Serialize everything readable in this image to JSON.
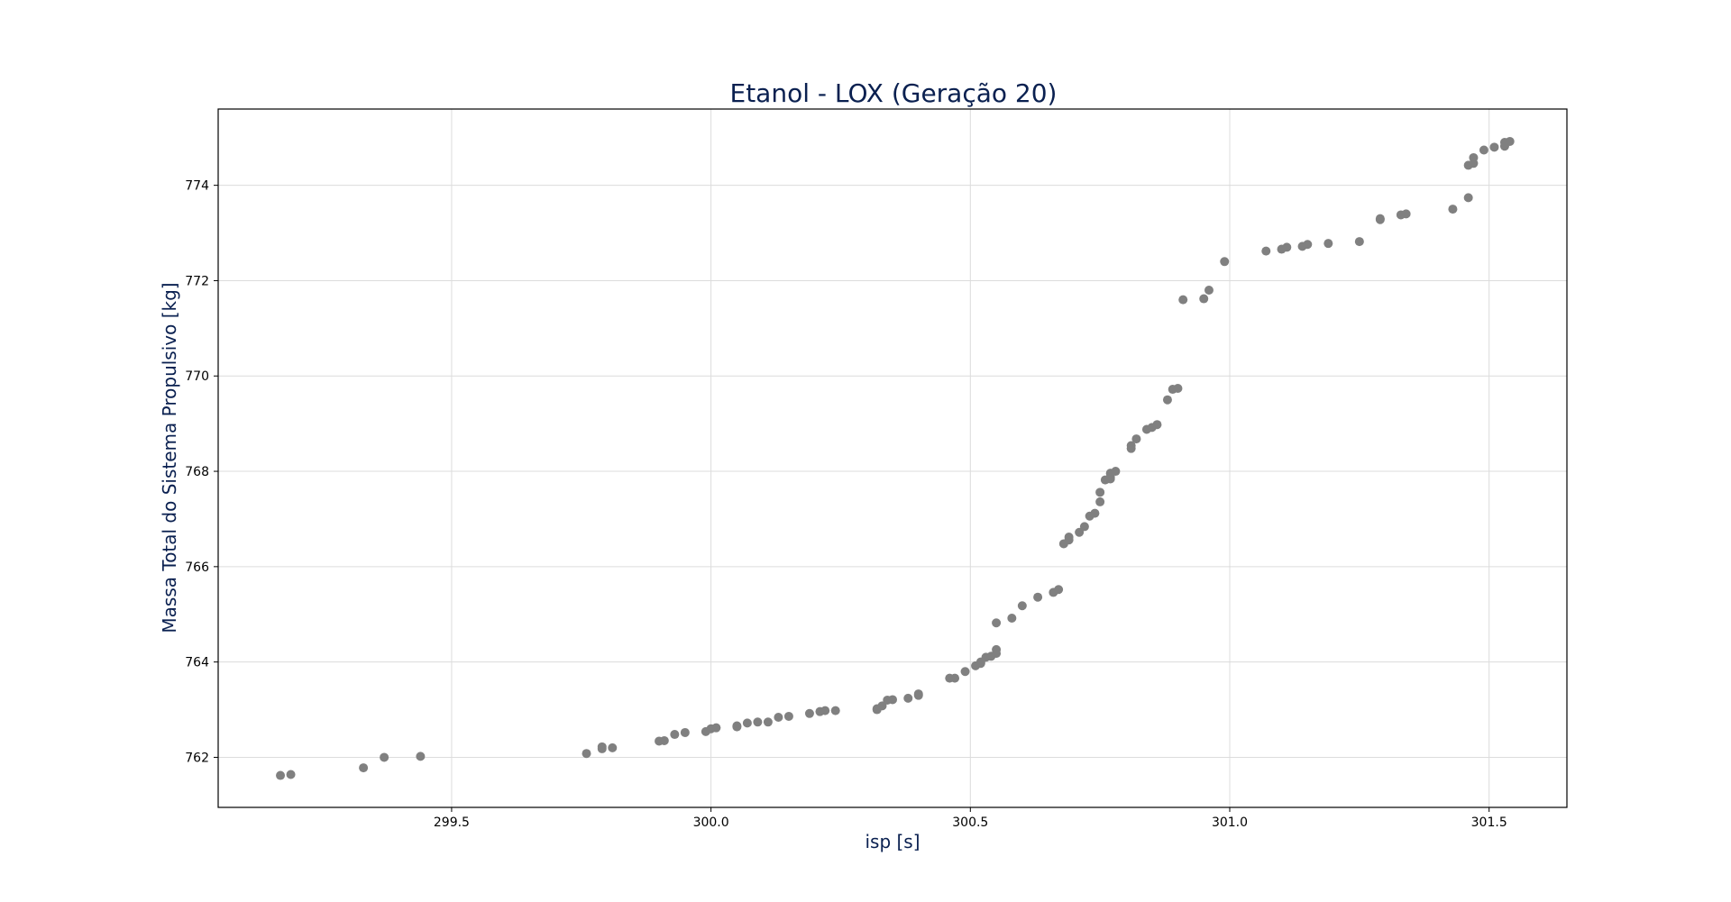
{
  "chart_data": {
    "type": "scatter",
    "title": "Etanol - LOX (Geração 20)",
    "xlabel": "isp [s]",
    "ylabel": "Massa Total do Sistema Propulsivo [kg]",
    "xlim": [
      299.05,
      301.65
    ],
    "ylim": [
      760.95,
      775.6
    ],
    "xticks": [
      299.5,
      300.0,
      300.5,
      301.0,
      301.5
    ],
    "xtick_labels": [
      "299.5",
      "300.0",
      "300.5",
      "301.0",
      "301.5"
    ],
    "yticks": [
      762,
      764,
      766,
      768,
      770,
      772,
      774
    ],
    "ytick_labels": [
      "762",
      "764",
      "766",
      "768",
      "770",
      "772",
      "774"
    ],
    "grid": true,
    "colors": {
      "points": "#808080",
      "title": "#0a2050",
      "grid": "#dcdcdc",
      "axes": "#000000"
    },
    "series": [
      {
        "points": [
          [
            299.17,
            761.62
          ],
          [
            299.19,
            761.64
          ],
          [
            299.33,
            761.78
          ],
          [
            299.37,
            762.0
          ],
          [
            299.44,
            762.02
          ],
          [
            299.76,
            762.08
          ],
          [
            299.79,
            762.18
          ],
          [
            299.79,
            762.22
          ],
          [
            299.81,
            762.2
          ],
          [
            299.9,
            762.34
          ],
          [
            299.91,
            762.35
          ],
          [
            299.93,
            762.48
          ],
          [
            299.95,
            762.52
          ],
          [
            299.99,
            762.54
          ],
          [
            300.0,
            762.6
          ],
          [
            300.01,
            762.62
          ],
          [
            300.05,
            762.64
          ],
          [
            300.05,
            762.66
          ],
          [
            300.07,
            762.72
          ],
          [
            300.09,
            762.74
          ],
          [
            300.11,
            762.74
          ],
          [
            300.13,
            762.84
          ],
          [
            300.15,
            762.86
          ],
          [
            300.19,
            762.92
          ],
          [
            300.21,
            762.96
          ],
          [
            300.22,
            762.98
          ],
          [
            300.24,
            762.98
          ],
          [
            300.32,
            763.0
          ],
          [
            300.32,
            763.02
          ],
          [
            300.33,
            763.08
          ],
          [
            300.34,
            763.2
          ],
          [
            300.35,
            763.21
          ],
          [
            300.38,
            763.24
          ],
          [
            300.4,
            763.3
          ],
          [
            300.4,
            763.33
          ],
          [
            300.46,
            763.66
          ],
          [
            300.47,
            763.66
          ],
          [
            300.49,
            763.8
          ],
          [
            300.51,
            763.92
          ],
          [
            300.52,
            763.97
          ],
          [
            300.52,
            764.0
          ],
          [
            300.53,
            764.1
          ],
          [
            300.54,
            764.12
          ],
          [
            300.55,
            764.18
          ],
          [
            300.55,
            764.26
          ],
          [
            300.55,
            764.82
          ],
          [
            300.58,
            764.92
          ],
          [
            300.6,
            765.18
          ],
          [
            300.63,
            765.36
          ],
          [
            300.66,
            765.46
          ],
          [
            300.67,
            765.52
          ],
          [
            300.68,
            766.48
          ],
          [
            300.69,
            766.56
          ],
          [
            300.69,
            766.62
          ],
          [
            300.71,
            766.72
          ],
          [
            300.72,
            766.84
          ],
          [
            300.73,
            767.06
          ],
          [
            300.74,
            767.12
          ],
          [
            300.75,
            767.36
          ],
          [
            300.75,
            767.56
          ],
          [
            300.76,
            767.82
          ],
          [
            300.77,
            767.84
          ],
          [
            300.77,
            767.88
          ],
          [
            300.77,
            767.96
          ],
          [
            300.78,
            768.0
          ],
          [
            300.81,
            768.48
          ],
          [
            300.81,
            768.54
          ],
          [
            300.82,
            768.68
          ],
          [
            300.84,
            768.88
          ],
          [
            300.85,
            768.92
          ],
          [
            300.86,
            768.98
          ],
          [
            300.88,
            769.5
          ],
          [
            300.89,
            769.72
          ],
          [
            300.9,
            769.74
          ],
          [
            300.91,
            771.6
          ],
          [
            300.95,
            771.62
          ],
          [
            300.96,
            771.8
          ],
          [
            300.99,
            772.4
          ],
          [
            301.07,
            772.62
          ],
          [
            301.1,
            772.66
          ],
          [
            301.11,
            772.7
          ],
          [
            301.14,
            772.72
          ],
          [
            301.15,
            772.76
          ],
          [
            301.19,
            772.78
          ],
          [
            301.25,
            772.82
          ],
          [
            301.29,
            773.28
          ],
          [
            301.29,
            773.3
          ],
          [
            301.33,
            773.38
          ],
          [
            301.34,
            773.4
          ],
          [
            301.43,
            773.5
          ],
          [
            301.46,
            773.74
          ],
          [
            301.46,
            774.42
          ],
          [
            301.47,
            774.46
          ],
          [
            301.47,
            774.58
          ],
          [
            301.49,
            774.74
          ],
          [
            301.51,
            774.8
          ],
          [
            301.53,
            774.82
          ],
          [
            301.53,
            774.9
          ],
          [
            301.54,
            774.92
          ]
        ]
      }
    ]
  }
}
